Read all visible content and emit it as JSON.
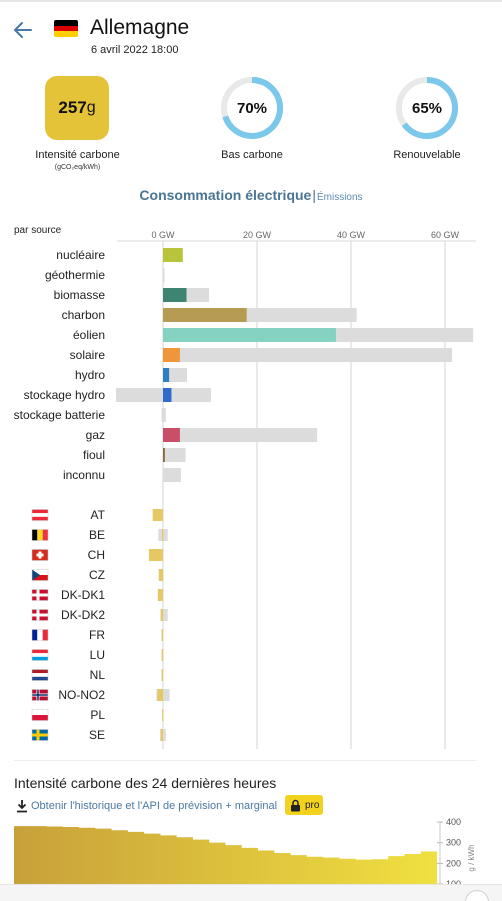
{
  "header": {
    "back_icon": "arrow-left-icon",
    "country": "Allemagne",
    "datetime": "6 avril 2022 18:00",
    "flag_colors": [
      "#000000",
      "#dd0000",
      "#ffce00"
    ]
  },
  "metrics": {
    "carbon_intensity": {
      "value": "257",
      "unit": "g",
      "label": "Intensité carbone",
      "sublabel": "(gCO₂eq/kWh)"
    },
    "low_carbon": {
      "value": "70%",
      "fraction": 0.7,
      "label": "Bas carbone"
    },
    "renewable": {
      "value": "65%",
      "fraction": 0.65,
      "label": "Renouvelable"
    },
    "accent_color": "#7cc8ea",
    "track_color": "#e9e9e9"
  },
  "section": {
    "title": "Consommation électrique",
    "separator": "|",
    "alt_link": "Émissions"
  },
  "chart_data": {
    "type": "bar",
    "header_label": "par source",
    "xlim": [
      -10,
      66
    ],
    "x_ticks": [
      0,
      20,
      40,
      60
    ],
    "x_tick_labels": [
      "0 GW",
      "20 GW",
      "40 GW",
      "60 GW"
    ],
    "grid": true,
    "sources": [
      {
        "name": "nucléaire",
        "production": 4.2,
        "capacity": 4.2,
        "color": "#b8c43a"
      },
      {
        "name": "géothermie",
        "production": 0.0,
        "capacity": 0.05,
        "color": "#c8c8c8"
      },
      {
        "name": "biomasse",
        "production": 5.0,
        "capacity": 9.8,
        "color": "#3d8572"
      },
      {
        "name": "charbon",
        "production": 17.8,
        "capacity": 41.2,
        "color": "#b69b52"
      },
      {
        "name": "éolien",
        "production": 36.8,
        "capacity": 66.0,
        "color": "#86d2c1"
      },
      {
        "name": "solaire",
        "production": 3.6,
        "capacity": 61.5,
        "color": "#f0963a"
      },
      {
        "name": "hydro",
        "production": 1.3,
        "capacity": 5.1,
        "color": "#2f7ec1"
      },
      {
        "name": "stockage hydro",
        "production": 1.8,
        "capacity": 10.2,
        "min": -10.0,
        "color": "#2f6bc8"
      },
      {
        "name": "stockage batterie",
        "production": 0.0,
        "capacity": 0.6,
        "min": -0.3,
        "color": "#c8c8c8"
      },
      {
        "name": "gaz",
        "production": 3.6,
        "capacity": 32.8,
        "color": "#c94e68"
      },
      {
        "name": "fioul",
        "production": 0.4,
        "capacity": 4.8,
        "color": "#8a6a3a"
      },
      {
        "name": "inconnu",
        "production": 0.0,
        "capacity": 3.8,
        "color": "#c8c8c8"
      }
    ],
    "exchanges": [
      {
        "zone": "AT",
        "flow": -2.2,
        "capacity": -2.2,
        "flag": "at"
      },
      {
        "zone": "BE",
        "flow": -0.2,
        "capacity": 1.0,
        "min": -1.0,
        "flag": "be"
      },
      {
        "zone": "CH",
        "flow": -3.0,
        "capacity": -3.0,
        "flag": "ch"
      },
      {
        "zone": "CZ",
        "flow": -0.9,
        "capacity": -0.9,
        "flag": "cz"
      },
      {
        "zone": "DK-DK1",
        "flow": -1.1,
        "capacity": -1.1,
        "flag": "dk"
      },
      {
        "zone": "DK-DK2",
        "flow": -0.5,
        "capacity": 1.0,
        "min": -0.5,
        "flag": "dk"
      },
      {
        "zone": "FR",
        "flow": -0.3,
        "capacity": -0.3,
        "flag": "fr"
      },
      {
        "zone": "LU",
        "flow": -0.3,
        "capacity": -0.3,
        "flag": "lu"
      },
      {
        "zone": "NL",
        "flow": -0.3,
        "capacity": -0.3,
        "flag": "nl"
      },
      {
        "zone": "NO-NO2",
        "flow": -1.2,
        "capacity": 1.4,
        "min": -1.4,
        "flag": "no"
      },
      {
        "zone": "PL",
        "flow": -0.2,
        "capacity": -0.2,
        "flag": "pl"
      },
      {
        "zone": "SE",
        "flow": -0.5,
        "capacity": 0.6,
        "min": -0.6,
        "flag": "se"
      }
    ],
    "exchange_color": "#e5c764",
    "capacity_color": "#dcdcdc"
  },
  "history": {
    "title": "Intensité carbone des 24 dernières heures",
    "download_icon": "download-icon",
    "link": "Obtenir l'historique et l'API de prévision + marginal",
    "pro_icon": "lock-icon",
    "pro_label": "pro",
    "ylabel": "g / kWh",
    "y_ticks": [
      "400",
      "300",
      "200",
      "100"
    ],
    "ylim": [
      100,
      400
    ],
    "values": [
      380,
      380,
      378,
      376,
      372,
      368,
      360,
      352,
      344,
      335,
      326,
      315,
      300,
      288,
      275,
      262,
      250,
      240,
      232,
      228,
      222,
      218,
      220,
      235,
      245,
      257
    ],
    "color_start": "#c8a03a",
    "color_end": "#f0e040"
  }
}
